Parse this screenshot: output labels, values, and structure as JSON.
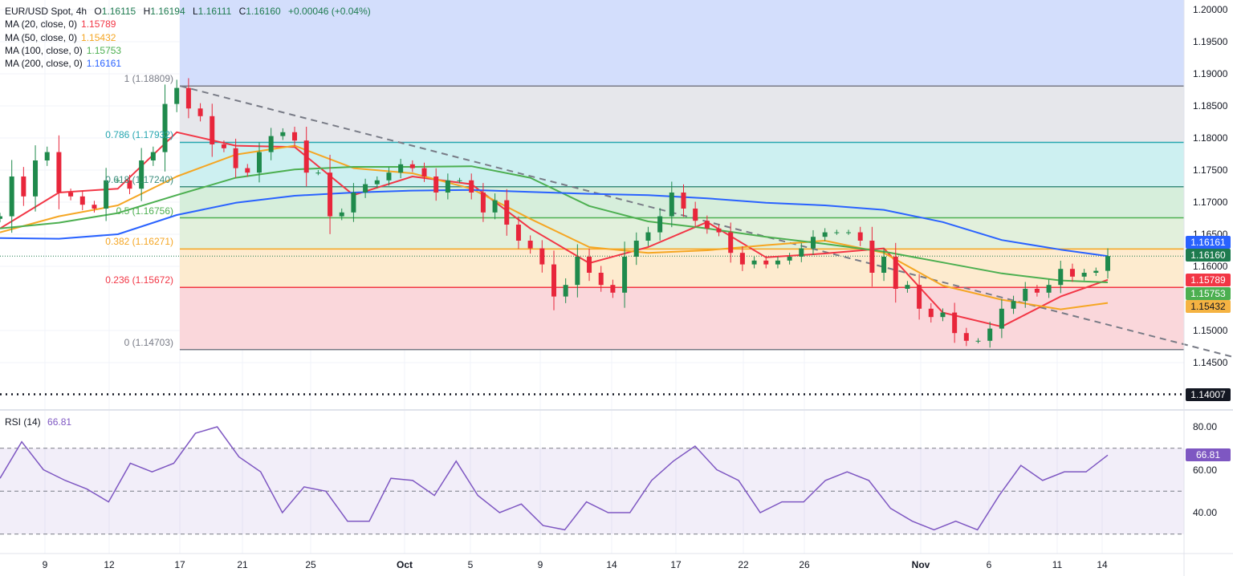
{
  "legend": {
    "symbol": "EUR/USD Spot, 4h",
    "open_label": "O",
    "open": "1.16115",
    "high_label": "H",
    "high": "1.16194",
    "low_label": "L",
    "low": "1.16111",
    "close_label": "C",
    "close": "1.16160",
    "change": "+0.00046 (+0.04%)",
    "ma": [
      {
        "label": "MA (20, close, 0)",
        "value": "1.15789",
        "color": "#f23645"
      },
      {
        "label": "MA (50, close, 0)",
        "value": "1.15432",
        "color": "#f5a623"
      },
      {
        "label": "MA (100, close, 0)",
        "value": "1.15753",
        "color": "#4caf50"
      },
      {
        "label": "MA (200, close, 0)",
        "value": "1.16161",
        "color": "#2962ff"
      }
    ],
    "rsi_label": "RSI (14)",
    "rsi_value": "66.81"
  },
  "chart_data": {
    "type": "candlestick",
    "price_axis": {
      "ylim": [
        1.1378,
        1.2015
      ],
      "ticks": [
        "1.20000",
        "1.19500",
        "1.19000",
        "1.18500",
        "1.18000",
        "1.17500",
        "1.17000",
        "1.16500",
        "1.16000",
        "1.15000",
        "1.14500"
      ]
    },
    "time_ticks": [
      {
        "label": "9",
        "bar": -1,
        "bold": false
      },
      {
        "label": "12",
        "bar": -1,
        "bold": false
      },
      {
        "label": "17",
        "bar": -1,
        "bold": false
      },
      {
        "label": "21",
        "bar": -1,
        "bold": false
      },
      {
        "label": "25",
        "bar": -1,
        "bold": false
      },
      {
        "label": "Oct",
        "bar": -1,
        "bold": true
      },
      {
        "label": "5",
        "bar": -1,
        "bold": false
      },
      {
        "label": "9",
        "bar": -1,
        "bold": false
      },
      {
        "label": "14",
        "bar": -1,
        "bold": false
      },
      {
        "label": "17",
        "bar": -1,
        "bold": false
      },
      {
        "label": "22",
        "bar": -1,
        "bold": false
      },
      {
        "label": "26",
        "bar": -1,
        "bold": false
      },
      {
        "label": "Nov",
        "bar": -1,
        "bold": true
      },
      {
        "label": "6",
        "bar": -1,
        "bold": false
      },
      {
        "label": "11",
        "bar": -1,
        "bold": false
      },
      {
        "label": "14",
        "bar": -1,
        "bold": false
      }
    ],
    "closes": [
      1.1678,
      1.174,
      1.1709,
      1.1765,
      1.1778,
      1.1715,
      1.1709,
      1.1696,
      1.169,
      1.1734,
      1.1734,
      1.1721,
      1.1765,
      1.1778,
      1.1853,
      1.1878,
      1.1846,
      1.1834,
      1.179,
      1.1784,
      1.1753,
      1.1746,
      1.1778,
      1.1803,
      1.1809,
      1.1796,
      1.1746,
      1.1746,
      1.1678,
      1.1684,
      1.1715,
      1.1728,
      1.1734,
      1.1746,
      1.1759,
      1.1753,
      1.174,
      1.1715,
      1.1734,
      1.1734,
      1.1715,
      1.1684,
      1.1703,
      1.1665,
      1.164,
      1.1628,
      1.1603,
      1.1553,
      1.1571,
      1.1615,
      1.159,
      1.1571,
      1.1559,
      1.1615,
      1.164,
      1.1653,
      1.1678,
      1.1715,
      1.169,
      1.1671,
      1.1659,
      1.1653,
      1.1621,
      1.1603,
      1.1609,
      1.1603,
      1.1609,
      1.1615,
      1.1628,
      1.1646,
      1.1653,
      1.1653,
      1.1653,
      1.164,
      1.159,
      1.1615,
      1.1565,
      1.1571,
      1.1534,
      1.1521,
      1.1528,
      1.1496,
      1.1484,
      1.1484,
      1.1503,
      1.1534,
      1.1546,
      1.1565,
      1.1559,
      1.1571,
      1.1596,
      1.1584,
      1.159,
      1.1593,
      1.1616
    ],
    "ma_step_bars": 5,
    "ma_series": [
      {
        "name": "MA 20",
        "color": "#f23645",
        "values": [
          1.1659,
          1.1715,
          1.1721,
          1.1809,
          1.1788,
          1.1786,
          1.1711,
          1.174,
          1.1728,
          1.1659,
          1.1605,
          1.163,
          1.1669,
          1.1614,
          1.162,
          1.1628,
          1.1528,
          1.1506,
          1.1553,
          1.1579
        ]
      },
      {
        "name": "MA 50",
        "color": "#f5a623",
        "values": [
          1.1653,
          1.1678,
          1.1695,
          1.174,
          1.1774,
          1.1788,
          1.1753,
          1.1745,
          1.1721,
          1.1674,
          1.163,
          1.1621,
          1.1625,
          1.1633,
          1.164,
          1.1621,
          1.157,
          1.1548,
          1.1533,
          1.1543
        ]
      },
      {
        "name": "MA 100",
        "color": "#4caf50",
        "values": [
          1.1659,
          1.1668,
          1.1683,
          1.1711,
          1.1738,
          1.1751,
          1.1755,
          1.1755,
          1.1756,
          1.1738,
          1.1694,
          1.167,
          1.1659,
          1.1646,
          1.1635,
          1.1623,
          1.1606,
          1.1589,
          1.1578,
          1.1575
        ]
      },
      {
        "name": "MA 200",
        "color": "#2962ff",
        "values": [
          1.1644,
          1.1643,
          1.165,
          1.168,
          1.1699,
          1.171,
          1.1715,
          1.1718,
          1.1719,
          1.1716,
          1.1713,
          1.1711,
          1.1706,
          1.1699,
          1.1695,
          1.1688,
          1.1669,
          1.1641,
          1.1626,
          1.1616
        ]
      }
    ],
    "fibonacci": [
      {
        "label": "1 (1.18809)",
        "level": 1.18809,
        "line": "#787b86",
        "fill": "#e6e7eb"
      },
      {
        "label": "0.786 (1.17932)",
        "level": 1.17932,
        "line": "#26a6b0",
        "fill": "#cdf0f1"
      },
      {
        "label": "0.618 (1.17240)",
        "level": 1.1724,
        "line": "#3d8f7f",
        "fill": "#d6eedb"
      },
      {
        "label": "0.5 (1.16756)",
        "level": 1.16756,
        "line": "#4caf50",
        "fill": "#e2f0dc"
      },
      {
        "label": "0.382 (1.16271)",
        "level": 1.16271,
        "line": "#f5a623",
        "fill": "#fdebcf"
      },
      {
        "label": "0.236 (1.15672)",
        "level": 1.15672,
        "line": "#f23645",
        "fill": "#fad7db"
      },
      {
        "label": "0 (1.14703)",
        "level": 1.14703,
        "line": "#787b86",
        "fill": null
      }
    ],
    "fib_top_fill": "#d3defc",
    "trendline": [
      [
        15.3,
        1.1881
      ],
      [
        104.6,
        1.1459
      ]
    ],
    "support_level": 1.14007,
    "last_price": 1.1616,
    "price_badges": [
      {
        "value": "1.16161",
        "bg": "#2962ff",
        "fg": "#ffffff"
      },
      {
        "value": "1.16160",
        "bg": "#1e7b4f",
        "fg": "#ffffff"
      },
      {
        "value": "1.15789",
        "bg": "#f23645",
        "fg": "#ffffff"
      },
      {
        "value": "1.15753",
        "bg": "#4caf50",
        "fg": "#ffffff"
      },
      {
        "value": "1.15432",
        "bg": "#f5b342",
        "fg": "#131722"
      },
      {
        "value": "1.14007",
        "bg": "#131722",
        "fg": "#ffffff"
      }
    ],
    "rsi": {
      "ylim": [
        20,
        90
      ],
      "ticks": [
        "80.00",
        "60.00",
        "40.00"
      ],
      "bands": [
        70,
        50,
        30
      ],
      "color": "#7e57c2",
      "badge": "66.81",
      "values": [
        56,
        73,
        60,
        55,
        51,
        45,
        63,
        59,
        63,
        77,
        80,
        66,
        59,
        40,
        52,
        50,
        36,
        36,
        56,
        55,
        48,
        64,
        48,
        40,
        44,
        34,
        32,
        45,
        40,
        40,
        55,
        64,
        71,
        60,
        55,
        40,
        45,
        45,
        55,
        59,
        55,
        42,
        36,
        32,
        36,
        32,
        48,
        62,
        55,
        59,
        59,
        66.81
      ]
    },
    "colors": {
      "up": "#1f8a4c",
      "down": "#e8263b"
    }
  }
}
